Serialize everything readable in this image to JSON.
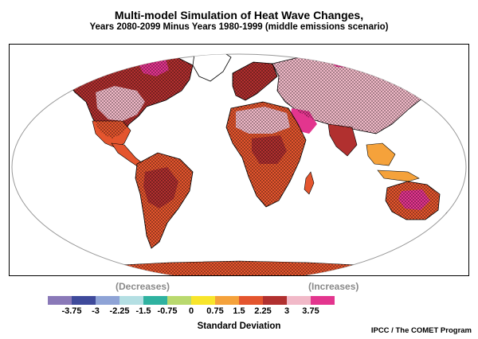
{
  "title": "Multi-model Simulation of Heat Wave Changes,",
  "subtitle": "Years 2080-2099 Minus Years 1980-1999 (middle emissions scenario)",
  "legend": {
    "decreases_label": "(Decreases)",
    "increases_label": "(Increases)",
    "title": "Standard Deviation",
    "ticks": [
      "-3.75",
      "-3",
      "-2.25",
      "-1.5",
      "-0.75",
      "0",
      "0.75",
      "1.5",
      "2.25",
      "3",
      "3.75"
    ],
    "colors": [
      "#8a79b8",
      "#3f4a9b",
      "#8ea3d6",
      "#b4dfe3",
      "#2fb2a0",
      "#b9d96e",
      "#f8e52b",
      "#f5a23b",
      "#e4552e",
      "#b1302f",
      "#f1b9c8",
      "#e3358e"
    ]
  },
  "credit": "IPCC / The COMET Program",
  "map_colors": {
    "ocean": "#ffffff",
    "stipple": "#000000",
    "outline": "#999999"
  }
}
